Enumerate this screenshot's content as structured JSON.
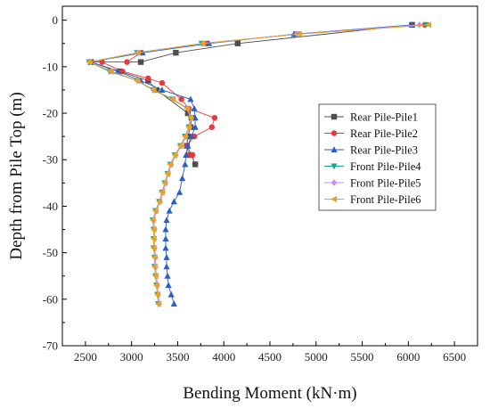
{
  "chart_data": {
    "type": "line",
    "xlabel": "Bending Moment (kN·m)",
    "ylabel": "Depth from Pile Top (m)",
    "xlim": [
      2250,
      6750
    ],
    "ylim": [
      -70,
      3
    ],
    "xticks": [
      2500,
      3000,
      3500,
      4000,
      4500,
      5000,
      5500,
      6000,
      6500
    ],
    "yticks": [
      0,
      -10,
      -20,
      -30,
      -40,
      -50,
      -60,
      -70
    ],
    "grid": false,
    "legend": "right",
    "series": [
      {
        "name": "Rear Pile-Pile1",
        "color": "#4d4d4d",
        "marker": "square",
        "points": [
          [
            6040,
            -1
          ],
          [
            4150,
            -5
          ],
          [
            3480,
            -7
          ],
          [
            3100,
            -9
          ],
          [
            2560,
            -9
          ],
          [
            2870,
            -11
          ],
          [
            3180,
            -13
          ],
          [
            3270,
            -15
          ],
          [
            3610,
            -20
          ],
          [
            3650,
            -21
          ],
          [
            3640,
            -23
          ],
          [
            3610,
            -25
          ],
          [
            3600,
            -27
          ],
          [
            3650,
            -29
          ],
          [
            3690,
            -31
          ]
        ]
      },
      {
        "name": "Rear Pile-Pile2",
        "color": "#e8383c",
        "marker": "circle",
        "points": [
          [
            6180,
            -1
          ],
          [
            4780,
            -3
          ],
          [
            3820,
            -5
          ],
          [
            3100,
            -7
          ],
          [
            2950,
            -9
          ],
          [
            2680,
            -9
          ],
          [
            2900,
            -11
          ],
          [
            3180,
            -12.5
          ],
          [
            3330,
            -13.5
          ],
          [
            3540,
            -17
          ],
          [
            3620,
            -19
          ],
          [
            3900,
            -21
          ],
          [
            3870,
            -23
          ],
          [
            3680,
            -25
          ],
          [
            3600,
            -27
          ],
          [
            3620,
            -29
          ],
          [
            3660,
            -29
          ]
        ]
      },
      {
        "name": "Rear Pile-Pile3",
        "color": "#2a5fc8",
        "marker": "triangle-up",
        "points": [
          [
            6040,
            -1
          ],
          [
            4760,
            -3
          ],
          [
            3840,
            -5
          ],
          [
            3120,
            -7
          ],
          [
            2560,
            -9
          ],
          [
            2850,
            -11
          ],
          [
            3100,
            -13
          ],
          [
            3330,
            -15
          ],
          [
            3640,
            -17
          ],
          [
            3680,
            -19
          ],
          [
            3690,
            -21
          ],
          [
            3690,
            -23
          ],
          [
            3650,
            -25
          ],
          [
            3610,
            -27
          ],
          [
            3590,
            -29
          ],
          [
            3580,
            -31
          ],
          [
            3550,
            -34
          ],
          [
            3520,
            -37
          ],
          [
            3460,
            -39
          ],
          [
            3410,
            -41
          ],
          [
            3380,
            -43
          ],
          [
            3370,
            -45
          ],
          [
            3370,
            -47
          ],
          [
            3370,
            -49
          ],
          [
            3380,
            -51
          ],
          [
            3380,
            -53
          ],
          [
            3390,
            -55
          ],
          [
            3400,
            -57
          ],
          [
            3430,
            -59
          ],
          [
            3460,
            -61
          ]
        ]
      },
      {
        "name": "Front Pile-Pile4",
        "color": "#1aa88a",
        "marker": "triangle-down",
        "points": [
          [
            6190,
            -1
          ],
          [
            4800,
            -3
          ],
          [
            3760,
            -5
          ],
          [
            3060,
            -7
          ],
          [
            2540,
            -9
          ],
          [
            2760,
            -11
          ],
          [
            3060,
            -13
          ],
          [
            3230,
            -15
          ],
          [
            3440,
            -17
          ],
          [
            3600,
            -19
          ],
          [
            3640,
            -21
          ],
          [
            3620,
            -23
          ],
          [
            3580,
            -25
          ],
          [
            3530,
            -27
          ],
          [
            3470,
            -29
          ],
          [
            3420,
            -31
          ],
          [
            3390,
            -33
          ],
          [
            3360,
            -35
          ],
          [
            3330,
            -37
          ],
          [
            3300,
            -39
          ],
          [
            3260,
            -41
          ],
          [
            3230,
            -43
          ],
          [
            3240,
            -45
          ],
          [
            3240,
            -47
          ],
          [
            3240,
            -49
          ],
          [
            3250,
            -51
          ],
          [
            3250,
            -53
          ],
          [
            3260,
            -55
          ],
          [
            3270,
            -57
          ],
          [
            3280,
            -59
          ],
          [
            3290,
            -61
          ]
        ]
      },
      {
        "name": "Front Pile-Pile5",
        "color": "#c98de6",
        "marker": "diamond",
        "points": [
          [
            6120,
            -1
          ],
          [
            4790,
            -3
          ],
          [
            3780,
            -5
          ],
          [
            3070,
            -7
          ],
          [
            2550,
            -9
          ],
          [
            2780,
            -11
          ],
          [
            3070,
            -13
          ],
          [
            3240,
            -15
          ],
          [
            3450,
            -17
          ],
          [
            3610,
            -19
          ],
          [
            3650,
            -21
          ],
          [
            3630,
            -23
          ],
          [
            3590,
            -25
          ],
          [
            3540,
            -27
          ],
          [
            3480,
            -29
          ],
          [
            3430,
            -31
          ],
          [
            3400,
            -33
          ],
          [
            3370,
            -35
          ],
          [
            3340,
            -37
          ],
          [
            3310,
            -39
          ],
          [
            3270,
            -41
          ],
          [
            3240,
            -43
          ],
          [
            3250,
            -45
          ],
          [
            3250,
            -47
          ],
          [
            3250,
            -49
          ],
          [
            3260,
            -51
          ],
          [
            3260,
            -53
          ],
          [
            3270,
            -55
          ],
          [
            3280,
            -57
          ],
          [
            3290,
            -59
          ],
          [
            3300,
            -61
          ]
        ]
      },
      {
        "name": "Front Pile-Pile6",
        "color": "#e6a326",
        "marker": "triangle-left",
        "points": [
          [
            6220,
            -1
          ],
          [
            4820,
            -3
          ],
          [
            3770,
            -5
          ],
          [
            3070,
            -7
          ],
          [
            2540,
            -9
          ],
          [
            2780,
            -11
          ],
          [
            3060,
            -13
          ],
          [
            3240,
            -15
          ],
          [
            3450,
            -17
          ],
          [
            3600,
            -19
          ],
          [
            3640,
            -21
          ],
          [
            3620,
            -23
          ],
          [
            3580,
            -25
          ],
          [
            3530,
            -27
          ],
          [
            3470,
            -29
          ],
          [
            3420,
            -31
          ],
          [
            3390,
            -33
          ],
          [
            3360,
            -35
          ],
          [
            3330,
            -37
          ],
          [
            3300,
            -39
          ],
          [
            3260,
            -41
          ],
          [
            3230,
            -43
          ],
          [
            3240,
            -45
          ],
          [
            3240,
            -47
          ],
          [
            3240,
            -49
          ],
          [
            3250,
            -51
          ],
          [
            3250,
            -53
          ],
          [
            3260,
            -55
          ],
          [
            3270,
            -57
          ],
          [
            3280,
            -59
          ],
          [
            3290,
            -61
          ]
        ]
      }
    ]
  }
}
